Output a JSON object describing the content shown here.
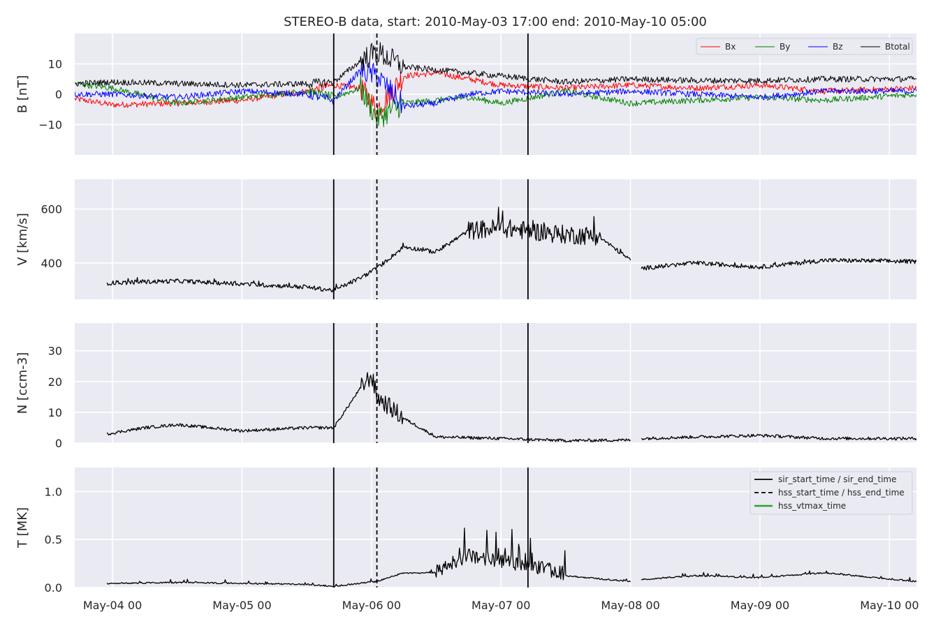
{
  "chart_data": {
    "type": "line",
    "title": "STEREO-B data, start: 2010-May-03 17:00  end: 2010-May-10 05:00",
    "x_range": [
      "2010-05-03 17:00",
      "2010-05-10 05:00"
    ],
    "x_ticks": [
      "May-04 00",
      "May-05 00",
      "May-06 00",
      "May-07 00",
      "May-08 00",
      "May-09 00",
      "May-10 00"
    ],
    "x_tick_dates": [
      "2010-05-04 00:00",
      "2010-05-05 00:00",
      "2010-05-06 00:00",
      "2010-05-07 00:00",
      "2010-05-08 00:00",
      "2010-05-09 00:00",
      "2010-05-10 00:00"
    ],
    "grid": true,
    "event_lines": {
      "sir_start_time": "2010-05-05 17:00",
      "hss_start_time": "2010-05-06 01:00",
      "sir_end_time": "2010-05-07 05:00"
    },
    "panels": [
      {
        "id": "b",
        "ylabel": "B [nT]",
        "ylim": [
          -20,
          20
        ],
        "yticks": [
          -10,
          0,
          10
        ],
        "legend_position": "top-right",
        "series": [
          {
            "name": "Bx",
            "color": "#ff0000",
            "values": [
              [
                "2010-05-03 17:00",
                -1.5
              ],
              [
                "2010-05-04 00:00",
                -3.5
              ],
              [
                "2010-05-04 12:00",
                -3
              ],
              [
                "2010-05-05 00:00",
                -2
              ],
              [
                "2010-05-05 12:00",
                1
              ],
              [
                "2010-05-05 17:00",
                3
              ],
              [
                "2010-05-05 22:00",
                2
              ],
              [
                "2010-05-06 01:00",
                -5
              ],
              [
                "2010-05-06 06:00",
                6
              ],
              [
                "2010-05-06 12:00",
                7
              ],
              [
                "2010-05-06 18:00",
                5
              ],
              [
                "2010-05-07 00:00",
                3
              ],
              [
                "2010-05-07 12:00",
                2
              ],
              [
                "2010-05-08 00:00",
                3
              ],
              [
                "2010-05-08 12:00",
                2
              ],
              [
                "2010-05-09 00:00",
                3
              ],
              [
                "2010-05-09 12:00",
                1
              ],
              [
                "2010-05-10 05:00",
                2
              ]
            ]
          },
          {
            "name": "By",
            "color": "#008000",
            "values": [
              [
                "2010-05-03 17:00",
                3.5
              ],
              [
                "2010-05-04 00:00",
                2
              ],
              [
                "2010-05-04 12:00",
                -3
              ],
              [
                "2010-05-05 00:00",
                -1
              ],
              [
                "2010-05-05 12:00",
                1
              ],
              [
                "2010-05-05 17:00",
                -1
              ],
              [
                "2010-05-05 22:00",
                2
              ],
              [
                "2010-05-06 01:00",
                -8
              ],
              [
                "2010-05-06 06:00",
                -3
              ],
              [
                "2010-05-06 12:00",
                -2
              ],
              [
                "2010-05-06 18:00",
                -1
              ],
              [
                "2010-05-07 00:00",
                -3
              ],
              [
                "2010-05-07 12:00",
                1
              ],
              [
                "2010-05-08 00:00",
                -3
              ],
              [
                "2010-05-08 12:00",
                -2
              ],
              [
                "2010-05-09 00:00",
                -1
              ],
              [
                "2010-05-09 12:00",
                -2
              ],
              [
                "2010-05-10 05:00",
                0
              ]
            ]
          },
          {
            "name": "Bz",
            "color": "#0000ff",
            "values": [
              [
                "2010-05-03 17:00",
                0
              ],
              [
                "2010-05-04 00:00",
                0
              ],
              [
                "2010-05-04 12:00",
                -1
              ],
              [
                "2010-05-05 00:00",
                1
              ],
              [
                "2010-05-05 12:00",
                0
              ],
              [
                "2010-05-05 17:00",
                -2
              ],
              [
                "2010-05-05 22:00",
                8
              ],
              [
                "2010-05-06 01:00",
                6
              ],
              [
                "2010-05-06 06:00",
                -4
              ],
              [
                "2010-05-06 12:00",
                -3
              ],
              [
                "2010-05-06 18:00",
                0
              ],
              [
                "2010-05-07 00:00",
                1
              ],
              [
                "2010-05-07 12:00",
                0
              ],
              [
                "2010-05-08 00:00",
                1
              ],
              [
                "2010-05-08 12:00",
                0
              ],
              [
                "2010-05-09 00:00",
                -1
              ],
              [
                "2010-05-09 12:00",
                1
              ],
              [
                "2010-05-10 05:00",
                1
              ]
            ]
          },
          {
            "name": "Btotal",
            "color": "#000000",
            "values": [
              [
                "2010-05-03 17:00",
                3.5
              ],
              [
                "2010-05-04 00:00",
                4
              ],
              [
                "2010-05-04 12:00",
                3.5
              ],
              [
                "2010-05-05 00:00",
                3
              ],
              [
                "2010-05-05 12:00",
                3.5
              ],
              [
                "2010-05-05 17:00",
                4
              ],
              [
                "2010-05-05 22:00",
                11
              ],
              [
                "2010-05-06 01:00",
                14
              ],
              [
                "2010-05-06 06:00",
                9
              ],
              [
                "2010-05-06 12:00",
                8
              ],
              [
                "2010-05-06 18:00",
                7
              ],
              [
                "2010-05-07 00:00",
                6
              ],
              [
                "2010-05-07 12:00",
                4
              ],
              [
                "2010-05-08 00:00",
                5
              ],
              [
                "2010-05-08 12:00",
                4.5
              ],
              [
                "2010-05-09 00:00",
                4.5
              ],
              [
                "2010-05-09 12:00",
                5
              ],
              [
                "2010-05-10 05:00",
                5
              ]
            ]
          }
        ]
      },
      {
        "id": "v",
        "ylabel": "V [km/s]",
        "ylim": [
          265,
          710
        ],
        "yticks": [
          400,
          600
        ],
        "series": [
          {
            "name": "",
            "color": "#000000",
            "values": [
              [
                "2010-05-03 23:00",
                325
              ],
              [
                "2010-05-04 06:00",
                330
              ],
              [
                "2010-05-04 12:00",
                333
              ],
              [
                "2010-05-05 00:00",
                322
              ],
              [
                "2010-05-05 12:00",
                310
              ],
              [
                "2010-05-05 17:00",
                298
              ],
              [
                "2010-05-05 22:00",
                345
              ],
              [
                "2010-05-06 01:00",
                380
              ],
              [
                "2010-05-06 06:00",
                460
              ],
              [
                "2010-05-06 12:00",
                440
              ],
              [
                "2010-05-06 18:00",
                520
              ],
              [
                "2010-05-07 00:00",
                530
              ],
              [
                "2010-05-07 12:00",
                505
              ],
              [
                "2010-05-07 18:00",
                500
              ],
              [
                "2010-05-08 00:00",
                410
              ],
              null,
              [
                "2010-05-08 02:00",
                380
              ],
              [
                "2010-05-08 12:00",
                400
              ],
              [
                "2010-05-09 00:00",
                385
              ],
              [
                "2010-05-09 12:00",
                410
              ],
              [
                "2010-05-10 05:00",
                405
              ]
            ]
          }
        ]
      },
      {
        "id": "n",
        "ylabel": "N [ccm-3]",
        "ylim": [
          0,
          39
        ],
        "yticks": [
          0,
          10,
          20,
          30
        ],
        "series": [
          {
            "name": "",
            "color": "#000000",
            "values": [
              [
                "2010-05-03 23:00",
                3
              ],
              [
                "2010-05-04 06:00",
                5
              ],
              [
                "2010-05-04 12:00",
                6
              ],
              [
                "2010-05-05 00:00",
                4
              ],
              [
                "2010-05-05 12:00",
                5
              ],
              [
                "2010-05-05 17:00",
                5
              ],
              [
                "2010-05-05 22:00",
                18
              ],
              [
                "2010-05-06 00:00",
                22
              ],
              [
                "2010-05-06 01:00",
                15
              ],
              [
                "2010-05-06 06:00",
                8
              ],
              [
                "2010-05-06 12:00",
                2
              ],
              [
                "2010-05-07 00:00",
                1.5
              ],
              [
                "2010-05-07 12:00",
                0.8
              ],
              [
                "2010-05-08 00:00",
                1
              ],
              null,
              [
                "2010-05-08 02:00",
                1.5
              ],
              [
                "2010-05-08 12:00",
                2
              ],
              [
                "2010-05-09 00:00",
                2.5
              ],
              [
                "2010-05-09 12:00",
                1.5
              ],
              [
                "2010-05-10 05:00",
                1.5
              ]
            ]
          }
        ]
      },
      {
        "id": "t",
        "ylabel": "T [MK]",
        "ylim": [
          0,
          1.25
        ],
        "yticks": [
          0.0,
          0.5,
          1.0
        ],
        "yticklabels": [
          "0.0",
          "0.5",
          "1.0"
        ],
        "legend_position": "top-right",
        "legend": [
          {
            "label": "sir_start_time / sir_end_time",
            "style": "solid",
            "color": "#000000"
          },
          {
            "label": "hss_start_time / hss_end_time",
            "style": "dashed",
            "color": "#000000"
          },
          {
            "label": "hss_vtmax_time",
            "style": "solid",
            "color": "#2ca02c"
          }
        ],
        "series": [
          {
            "name": "",
            "color": "#000000",
            "values": [
              [
                "2010-05-03 23:00",
                0.04
              ],
              [
                "2010-05-04 12:00",
                0.05
              ],
              [
                "2010-05-05 00:00",
                0.04
              ],
              [
                "2010-05-05 12:00",
                0.03
              ],
              [
                "2010-05-05 17:00",
                0.01
              ],
              [
                "2010-05-06 01:00",
                0.06
              ],
              [
                "2010-05-06 06:00",
                0.15
              ],
              [
                "2010-05-06 12:00",
                0.15
              ],
              [
                "2010-05-06 18:00",
                0.3
              ],
              [
                "2010-05-07 00:00",
                0.25
              ],
              [
                "2010-05-07 12:00",
                0.12
              ],
              [
                "2010-05-08 00:00",
                0.06
              ],
              null,
              [
                "2010-05-08 02:00",
                0.08
              ],
              [
                "2010-05-08 12:00",
                0.12
              ],
              [
                "2010-05-09 00:00",
                0.1
              ],
              [
                "2010-05-09 12:00",
                0.15
              ],
              [
                "2010-05-10 05:00",
                0.06
              ]
            ]
          }
        ]
      }
    ]
  }
}
